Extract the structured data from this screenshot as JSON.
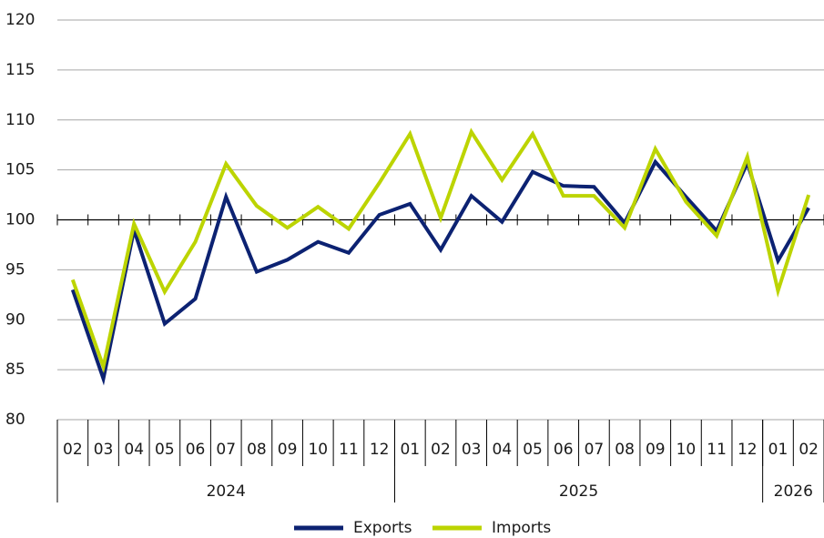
{
  "chart_data": {
    "type": "line",
    "categories": [
      "02",
      "03",
      "04",
      "05",
      "06",
      "07",
      "08",
      "09",
      "10",
      "11",
      "12",
      "01",
      "02",
      "03",
      "04",
      "05",
      "06",
      "07",
      "08",
      "09",
      "10",
      "11",
      "12",
      "01",
      "02"
    ],
    "year_groups": [
      {
        "label": "2024",
        "months": 11
      },
      {
        "label": "2025",
        "months": 12
      },
      {
        "label": "2026",
        "months": 2
      }
    ],
    "series": [
      {
        "name": "Exports",
        "color": "#0c2272",
        "values": [
          93.0,
          84.1,
          99.0,
          89.6,
          92.1,
          102.3,
          94.8,
          96.0,
          97.8,
          96.7,
          100.5,
          101.6,
          97.0,
          102.4,
          99.8,
          104.8,
          103.4,
          103.3,
          99.7,
          105.8,
          102.3,
          98.9,
          105.7,
          95.9,
          101.2
        ]
      },
      {
        "name": "Imports",
        "color": "#bcd400",
        "values": [
          94.0,
          85.3,
          99.6,
          92.8,
          97.8,
          105.6,
          101.4,
          99.2,
          101.3,
          99.1,
          103.7,
          108.6,
          100.2,
          108.8,
          104.0,
          108.6,
          102.4,
          102.4,
          99.2,
          107.1,
          101.8,
          98.4,
          106.3,
          92.9,
          102.5
        ]
      }
    ],
    "ylim": [
      80,
      120
    ],
    "yticks": [
      80,
      85,
      90,
      95,
      100,
      105,
      110,
      115,
      120
    ],
    "x_axis_at": 100,
    "grid": true,
    "legend": "bottom"
  }
}
